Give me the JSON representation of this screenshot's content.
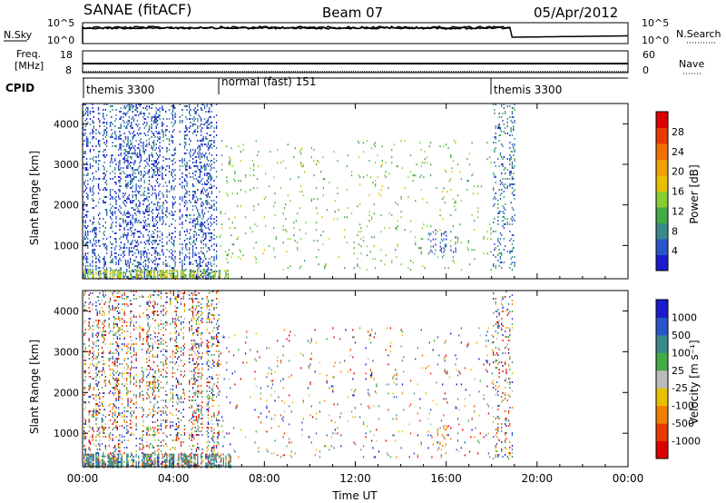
{
  "header": {
    "station": "SANAE (fitACF)",
    "beam": "Beam 07",
    "date": "05/Apr/2012"
  },
  "noise_panel": {
    "left_label": "N.Sky",
    "right_label": "N.Search",
    "left_ticks": [
      "10^5",
      "10^0"
    ],
    "right_ticks": [
      "10^5",
      "10^0"
    ]
  },
  "freq_panel": {
    "left_label_1": "Freq.",
    "left_label_2": "[MHz]",
    "right_label": "Nave",
    "left_ticks": [
      "18",
      "8"
    ],
    "right_ticks": [
      "60",
      "0"
    ]
  },
  "cpid_panel": {
    "label": "CPID",
    "modes": [
      {
        "name": "themis 3300",
        "start_hour": 0
      },
      {
        "name": "normal (fast) 151",
        "start_hour": 6
      },
      {
        "name": "themis 3300",
        "start_hour": 18
      }
    ]
  },
  "axes": {
    "x_label": "Time UT",
    "x_ticks": [
      "00:00",
      "04:00",
      "08:00",
      "12:00",
      "16:00",
      "20:00",
      "00:00"
    ],
    "x_range_hours": [
      0,
      24
    ],
    "y_label": "Slant Range [km]",
    "y_ticks": [
      "1000",
      "2000",
      "3000",
      "4000"
    ],
    "y_range_km": [
      180,
      4500
    ]
  },
  "power_colorbar": {
    "title": "Power [dB]",
    "ticks": [
      "4",
      "8",
      "12",
      "16",
      "20",
      "24",
      "28"
    ],
    "colors": [
      "#1a1acc",
      "#2a55c8",
      "#3a8a8a",
      "#44aa44",
      "#88cc33",
      "#e6c000",
      "#f0a000",
      "#f07000",
      "#e83a00",
      "#dd0000"
    ]
  },
  "velocity_colorbar": {
    "title": "Velocity [m s⁻¹]",
    "ticks": [
      "1000",
      "500",
      "100",
      "25",
      "-25",
      "-100",
      "-500",
      "-1000"
    ],
    "colors": [
      "#1a1acc",
      "#2a55c8",
      "#3a8a8a",
      "#44aa44",
      "#bbbbbb",
      "#e6c000",
      "#f08000",
      "#e83a00",
      "#dd0000"
    ]
  },
  "chart_data": [
    {
      "type": "heatmap",
      "title": "Power [dB]",
      "xlabel": "Time UT",
      "ylabel": "Slant Range [km]",
      "x_range": [
        0,
        24
      ],
      "ylim": [
        180,
        4500
      ],
      "scatter_regions": [
        {
          "t_start": 0.0,
          "t_end": 6.0,
          "r_start": 180,
          "r_end": 4500,
          "density": "high",
          "dominant_power_db": 4
        },
        {
          "t_start": 0.0,
          "t_end": 6.5,
          "r_start": 180,
          "r_end": 400,
          "density": "very high",
          "dominant_power_db": 14
        },
        {
          "t_start": 0.1,
          "t_end": 0.6,
          "r_start": 600,
          "r_end": 1500,
          "density": "high",
          "dominant_power_db": 4
        },
        {
          "t_start": 6.0,
          "t_end": 18.0,
          "r_start": 400,
          "r_end": 3600,
          "density": "low",
          "dominant_power_db": 12
        },
        {
          "t_start": 15.2,
          "t_end": 16.4,
          "r_start": 800,
          "r_end": 1400,
          "density": "medium",
          "dominant_power_db": 4
        },
        {
          "t_start": 18.0,
          "t_end": 19.0,
          "r_start": 400,
          "r_end": 4500,
          "density": "medium",
          "dominant_power_db": 6
        }
      ]
    },
    {
      "type": "heatmap",
      "title": "Velocity [m s⁻¹]",
      "xlabel": "Time UT",
      "ylabel": "Slant Range [km]",
      "x_range": [
        0,
        24
      ],
      "ylim": [
        180,
        4500
      ],
      "scatter_regions": [
        {
          "t_start": 0.0,
          "t_end": 6.0,
          "r_start": 180,
          "r_end": 4500,
          "density": "high",
          "dominant_velocity": "mixed"
        },
        {
          "t_start": 0.0,
          "t_end": 6.5,
          "r_start": 180,
          "r_end": 500,
          "density": "very high",
          "dominant_velocity": 100
        },
        {
          "t_start": 6.0,
          "t_end": 18.0,
          "r_start": 400,
          "r_end": 3600,
          "density": "low",
          "dominant_velocity": "mixed"
        },
        {
          "t_start": 15.6,
          "t_end": 16.1,
          "r_start": 500,
          "r_end": 1200,
          "density": "medium",
          "dominant_velocity": -500
        },
        {
          "t_start": 18.0,
          "t_end": 19.0,
          "r_start": 400,
          "r_end": 4500,
          "density": "medium",
          "dominant_velocity": "mixed"
        }
      ]
    }
  ]
}
